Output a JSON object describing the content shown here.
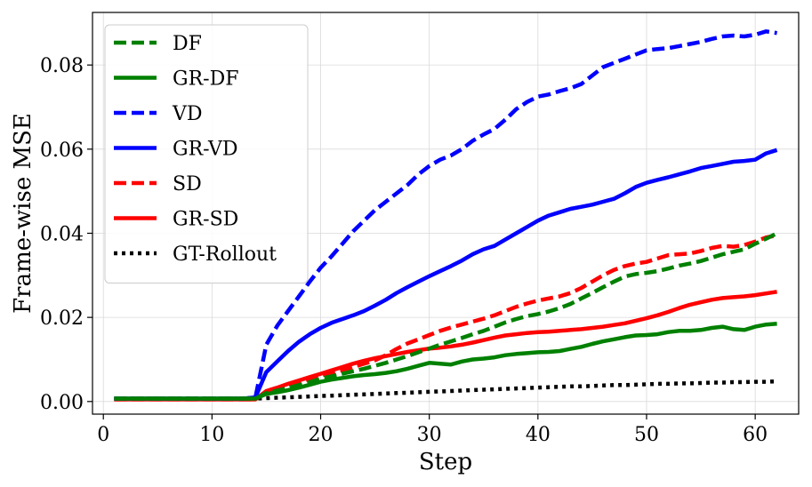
{
  "chart_data": {
    "type": "line",
    "title": "",
    "xlabel": "Step",
    "ylabel": "Frame-wise MSE",
    "xlim": [
      -1,
      64
    ],
    "ylim": [
      -0.003,
      0.0925
    ],
    "xticks": [
      0,
      10,
      20,
      30,
      40,
      50,
      60
    ],
    "yticks": [
      0.0,
      0.02,
      0.04,
      0.06,
      0.08
    ],
    "ytick_labels": [
      "0.00",
      "0.02",
      "0.04",
      "0.06",
      "0.08"
    ],
    "grid": true,
    "legend_position": "top-left",
    "x_start": 1,
    "series": [
      {
        "name": "DF",
        "color": "#008000",
        "style": "dashed",
        "values": [
          0.0007,
          0.0007,
          0.0007,
          0.0007,
          0.0007,
          0.0007,
          0.0007,
          0.0007,
          0.0007,
          0.0007,
          0.0007,
          0.0007,
          0.0007,
          0.0007,
          0.002,
          0.0026,
          0.0032,
          0.0039,
          0.0046,
          0.0054,
          0.006,
          0.0066,
          0.0072,
          0.0078,
          0.0085,
          0.0092,
          0.01,
          0.0108,
          0.0117,
          0.0126,
          0.0135,
          0.0143,
          0.0151,
          0.016,
          0.0168,
          0.0178,
          0.0188,
          0.0196,
          0.0203,
          0.0208,
          0.0214,
          0.0222,
          0.0232,
          0.0245,
          0.0258,
          0.0272,
          0.0285,
          0.0297,
          0.0303,
          0.0306,
          0.031,
          0.0316,
          0.0323,
          0.0328,
          0.0334,
          0.0342,
          0.035,
          0.0356,
          0.0362,
          0.0375,
          0.0387,
          0.04
        ]
      },
      {
        "name": "GR-DF",
        "color": "#008000",
        "style": "solid",
        "values": [
          0.0007,
          0.0007,
          0.0007,
          0.0007,
          0.0007,
          0.0007,
          0.0007,
          0.0007,
          0.0007,
          0.0007,
          0.0007,
          0.0007,
          0.0007,
          0.0007,
          0.0018,
          0.0022,
          0.0027,
          0.0033,
          0.004,
          0.0047,
          0.0052,
          0.0056,
          0.006,
          0.0063,
          0.0065,
          0.0068,
          0.0072,
          0.0078,
          0.0085,
          0.0092,
          0.009,
          0.0088,
          0.0095,
          0.01,
          0.0102,
          0.0105,
          0.011,
          0.0113,
          0.0115,
          0.0117,
          0.0118,
          0.012,
          0.0125,
          0.013,
          0.0137,
          0.0143,
          0.0148,
          0.0153,
          0.0157,
          0.0158,
          0.016,
          0.0165,
          0.0168,
          0.0168,
          0.017,
          0.0175,
          0.0178,
          0.0172,
          0.017,
          0.0178,
          0.0183,
          0.0185
        ]
      },
      {
        "name": "VD",
        "color": "#0000ff",
        "style": "dashed",
        "values": [
          0.0007,
          0.0007,
          0.0007,
          0.0007,
          0.0007,
          0.0007,
          0.0007,
          0.0007,
          0.0007,
          0.0007,
          0.0007,
          0.0007,
          0.0007,
          0.001,
          0.0135,
          0.018,
          0.0215,
          0.025,
          0.0285,
          0.0318,
          0.0345,
          0.0375,
          0.0405,
          0.043,
          0.0455,
          0.0475,
          0.0495,
          0.0515,
          0.054,
          0.056,
          0.0575,
          0.0585,
          0.06,
          0.062,
          0.0635,
          0.0648,
          0.067,
          0.0695,
          0.0712,
          0.0725,
          0.073,
          0.0738,
          0.0745,
          0.0755,
          0.0775,
          0.0795,
          0.0805,
          0.0815,
          0.0825,
          0.0835,
          0.0838,
          0.084,
          0.0845,
          0.085,
          0.0855,
          0.0862,
          0.0868,
          0.087,
          0.0868,
          0.0872,
          0.088,
          0.0876
        ]
      },
      {
        "name": "GR-VD",
        "color": "#0000ff",
        "style": "solid",
        "values": [
          0.0007,
          0.0007,
          0.0007,
          0.0007,
          0.0007,
          0.0007,
          0.0007,
          0.0007,
          0.0007,
          0.0007,
          0.0007,
          0.0007,
          0.0007,
          0.001,
          0.007,
          0.0095,
          0.012,
          0.0142,
          0.016,
          0.0175,
          0.0187,
          0.0196,
          0.0205,
          0.0215,
          0.0228,
          0.0242,
          0.0258,
          0.0272,
          0.0285,
          0.0298,
          0.031,
          0.0322,
          0.0335,
          0.035,
          0.0362,
          0.037,
          0.0385,
          0.04,
          0.0415,
          0.043,
          0.0442,
          0.045,
          0.0458,
          0.0463,
          0.0468,
          0.0475,
          0.0482,
          0.0495,
          0.051,
          0.052,
          0.0527,
          0.0533,
          0.054,
          0.0547,
          0.0555,
          0.056,
          0.0565,
          0.057,
          0.0572,
          0.0575,
          0.059,
          0.0598
        ]
      },
      {
        "name": "SD",
        "color": "#ff0000",
        "style": "dashed",
        "values": [
          0.0005,
          0.0005,
          0.0005,
          0.0005,
          0.0005,
          0.0005,
          0.0005,
          0.0005,
          0.0005,
          0.0005,
          0.0005,
          0.0005,
          0.0005,
          0.0005,
          0.0022,
          0.003,
          0.0038,
          0.0046,
          0.0054,
          0.0062,
          0.0068,
          0.0074,
          0.0082,
          0.009,
          0.0098,
          0.011,
          0.0125,
          0.0138,
          0.0148,
          0.0158,
          0.0168,
          0.0176,
          0.0183,
          0.019,
          0.0197,
          0.0205,
          0.0215,
          0.0225,
          0.0233,
          0.024,
          0.0245,
          0.025,
          0.0258,
          0.027,
          0.0285,
          0.03,
          0.0313,
          0.0322,
          0.0328,
          0.0332,
          0.034,
          0.0348,
          0.035,
          0.0352,
          0.0358,
          0.0365,
          0.037,
          0.0368,
          0.0372,
          0.038,
          0.039,
          0.0395
        ]
      },
      {
        "name": "GR-SD",
        "color": "#ff0000",
        "style": "solid",
        "values": [
          0.0005,
          0.0005,
          0.0005,
          0.0005,
          0.0005,
          0.0005,
          0.0005,
          0.0005,
          0.0005,
          0.0005,
          0.0005,
          0.0005,
          0.0005,
          0.0005,
          0.0025,
          0.0033,
          0.0042,
          0.005,
          0.0058,
          0.0066,
          0.0074,
          0.0082,
          0.009,
          0.0097,
          0.0103,
          0.0108,
          0.0113,
          0.0118,
          0.0122,
          0.0126,
          0.0128,
          0.0131,
          0.0135,
          0.014,
          0.0146,
          0.0152,
          0.0157,
          0.016,
          0.0163,
          0.0165,
          0.0166,
          0.0168,
          0.017,
          0.0172,
          0.0175,
          0.0178,
          0.0182,
          0.0186,
          0.0192,
          0.0198,
          0.0205,
          0.0213,
          0.0222,
          0.023,
          0.0236,
          0.0242,
          0.0246,
          0.0248,
          0.025,
          0.0253,
          0.0257,
          0.0261
        ]
      },
      {
        "name": "GT-Rollout",
        "color": "#000000",
        "style": "dotted",
        "values": [
          0.0007,
          0.0007,
          0.0007,
          0.0007,
          0.0007,
          0.0007,
          0.0007,
          0.0007,
          0.0007,
          0.0007,
          0.0007,
          0.0007,
          0.0007,
          0.0007,
          0.0008,
          0.0009,
          0.001,
          0.0011,
          0.0012,
          0.0013,
          0.0014,
          0.0015,
          0.0016,
          0.0017,
          0.0018,
          0.0019,
          0.002,
          0.0021,
          0.0022,
          0.0023,
          0.0024,
          0.0025,
          0.0026,
          0.0027,
          0.0028,
          0.0029,
          0.003,
          0.0031,
          0.0032,
          0.0033,
          0.0034,
          0.0035,
          0.0036,
          0.0036,
          0.0037,
          0.0038,
          0.0039,
          0.0039,
          0.004,
          0.0041,
          0.0042,
          0.0042,
          0.0043,
          0.0043,
          0.0044,
          0.0045,
          0.0045,
          0.0046,
          0.0046,
          0.0047,
          0.0047,
          0.0048
        ]
      }
    ]
  }
}
